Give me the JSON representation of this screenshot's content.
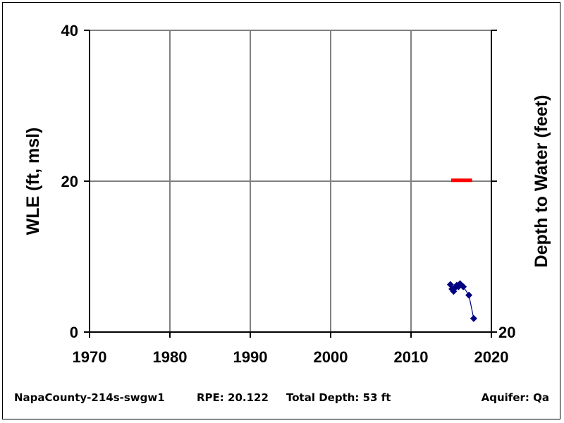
{
  "chart_data": {
    "type": "line",
    "x_range": [
      1970,
      2020
    ],
    "x_ticks": [
      "1970",
      "1980",
      "1990",
      "2000",
      "2010",
      "2020"
    ],
    "y_left_range": [
      0,
      40
    ],
    "y_left_ticks": [
      "0",
      "20",
      "40"
    ],
    "y_left_label": "WLE (ft, msl)",
    "y_right_label": "Depth to Water (feet)",
    "y_right_ticks": [
      "20"
    ],
    "grid": true,
    "series": [
      {
        "color": "#000080",
        "marker": "diamond",
        "x": [
          2014.9,
          2015.1,
          2015.3,
          2015.5,
          2015.7,
          2015.9,
          2016.1,
          2016.5,
          2017.2,
          2017.8
        ],
        "y": [
          6.3,
          5.7,
          5.4,
          5.9,
          6.2,
          6.0,
          6.4,
          6.0,
          4.9,
          1.8
        ]
      }
    ],
    "reference_line": {
      "color": "#ff0000",
      "y": 20.122,
      "x_start": 2015.0,
      "x_end": 2017.6
    }
  },
  "footer": {
    "well_id": "NapaCounty-214s-swgw1",
    "rpe": "RPE: 20.122",
    "total_depth": "Total Depth: 53 ft",
    "aquifer": "Aquifer: Qa"
  }
}
